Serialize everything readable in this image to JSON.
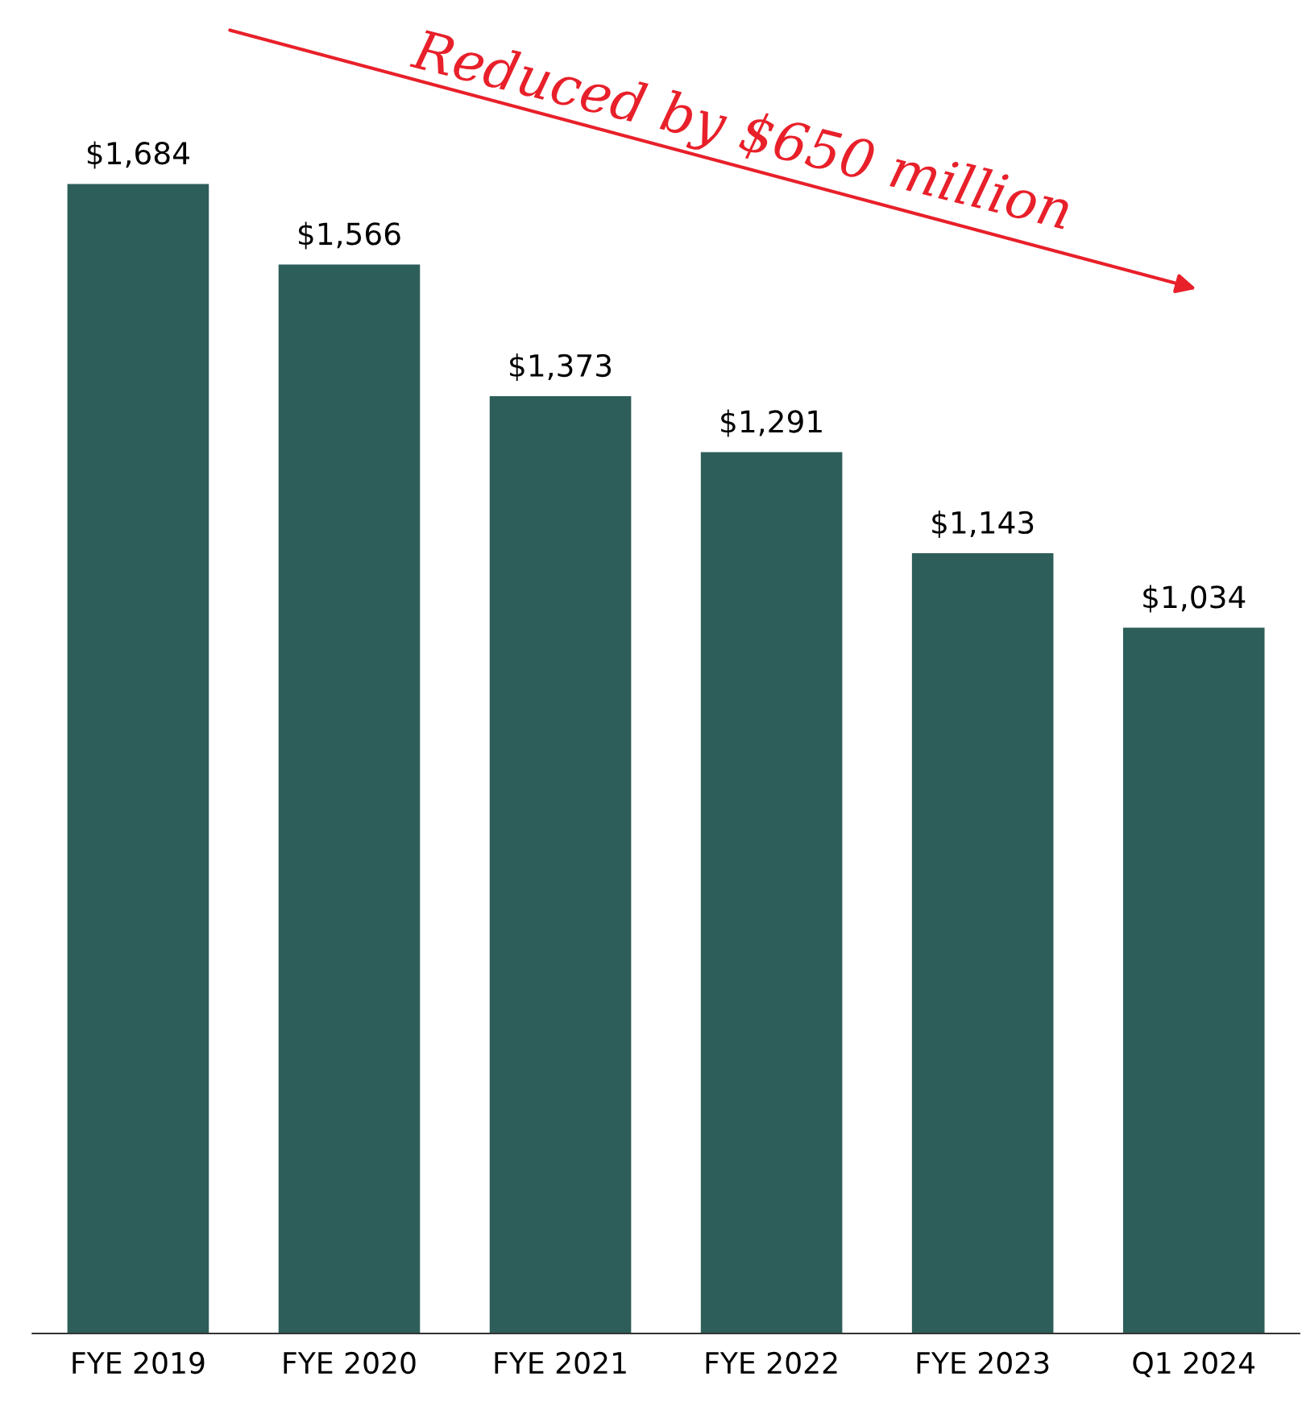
{
  "chart_data": {
    "type": "bar",
    "categories": [
      "FYE 2019",
      "FYE 2020",
      "FYE 2021",
      "FYE 2022",
      "FYE 2023",
      "Q1 2024"
    ],
    "values": [
      1684,
      1566,
      1373,
      1291,
      1143,
      1034
    ],
    "value_labels": [
      "$1,684",
      "$1,566",
      "$1,373",
      "$1,291",
      "$1,143",
      "$1,034"
    ],
    "color": "#2e5e59",
    "annotations": [
      "Reduced by $650 million"
    ],
    "tick_labels": "x",
    "grid": false,
    "legend": false
  }
}
